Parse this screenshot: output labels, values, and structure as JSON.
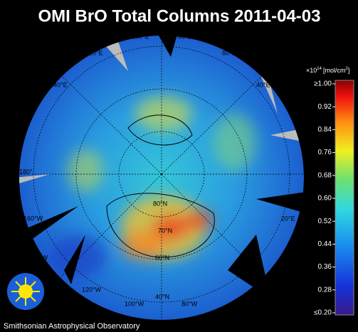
{
  "title": "OMI BrO Total Columns 2011-04-03",
  "colorbar": {
    "unit_base": "×10",
    "unit_exponent": "14",
    "unit_text": "[mol/cm",
    "unit_text_exponent": "2",
    "unit_close": "]",
    "vlim": [
      0.2,
      1.0
    ],
    "ticks": [
      {
        "value": 1.0,
        "label": "≥1.00"
      },
      {
        "value": 0.92,
        "label": "0.92"
      },
      {
        "value": 0.84,
        "label": "0.84"
      },
      {
        "value": 0.76,
        "label": "0.76"
      },
      {
        "value": 0.68,
        "label": "0.68"
      },
      {
        "value": 0.6,
        "label": "0.60"
      },
      {
        "value": 0.52,
        "label": "0.52"
      },
      {
        "value": 0.44,
        "label": "0.44"
      },
      {
        "value": 0.36,
        "label": "0.36"
      },
      {
        "value": 0.28,
        "label": "0.28"
      },
      {
        "value": 0.2,
        "label": "≤0.20"
      }
    ]
  },
  "map_labels": [
    "100°E",
    "80°E",
    "120°E",
    "60°E",
    "140°E",
    "40°E",
    "180°",
    "20°E",
    "160°W",
    "140°W",
    "120°W",
    "100°W",
    "80°W",
    "80°N",
    "70°N",
    "60°N",
    "40°N"
  ],
  "footer": "Smithsonian Astrophysical Observatory"
}
